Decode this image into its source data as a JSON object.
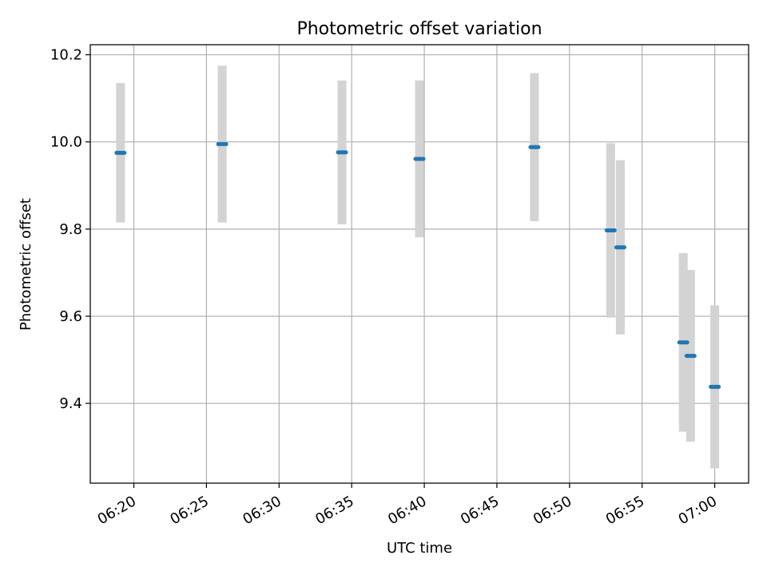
{
  "chart_data": {
    "type": "scatter",
    "title": "Photometric offset variation",
    "xlabel": "UTC time",
    "ylabel": "Photometric offset",
    "x_ticks": [
      "06:20",
      "06:25",
      "06:30",
      "06:35",
      "06:40",
      "06:45",
      "06:50",
      "06:55",
      "07:00"
    ],
    "y_ticks": [
      "9.4",
      "9.6",
      "9.8",
      "10.0",
      "10.2"
    ],
    "xlim": [
      "06:17:00",
      "07:02:20"
    ],
    "ylim": [
      9.217,
      10.223
    ],
    "grid": true,
    "errorbar_color": "#d3d3d3",
    "marker_color": "#1f77b4",
    "series": [
      {
        "points": [
          {
            "t": "06:19:05",
            "y": 9.975,
            "err": 0.16
          },
          {
            "t": "06:26:05",
            "y": 9.995,
            "err": 0.18
          },
          {
            "t": "06:34:20",
            "y": 9.976,
            "err": 0.165
          },
          {
            "t": "06:39:40",
            "y": 9.961,
            "err": 0.18
          },
          {
            "t": "06:47:35",
            "y": 9.988,
            "err": 0.17
          },
          {
            "t": "06:52:50",
            "y": 9.797,
            "err": 0.2
          },
          {
            "t": "06:53:30",
            "y": 9.758,
            "err": 0.2
          },
          {
            "t": "06:57:50",
            "y": 9.54,
            "err": 0.205
          },
          {
            "t": "06:58:20",
            "y": 9.509,
            "err": 0.197
          },
          {
            "t": "07:00:00",
            "y": 9.438,
            "err": 0.187
          }
        ]
      }
    ]
  }
}
